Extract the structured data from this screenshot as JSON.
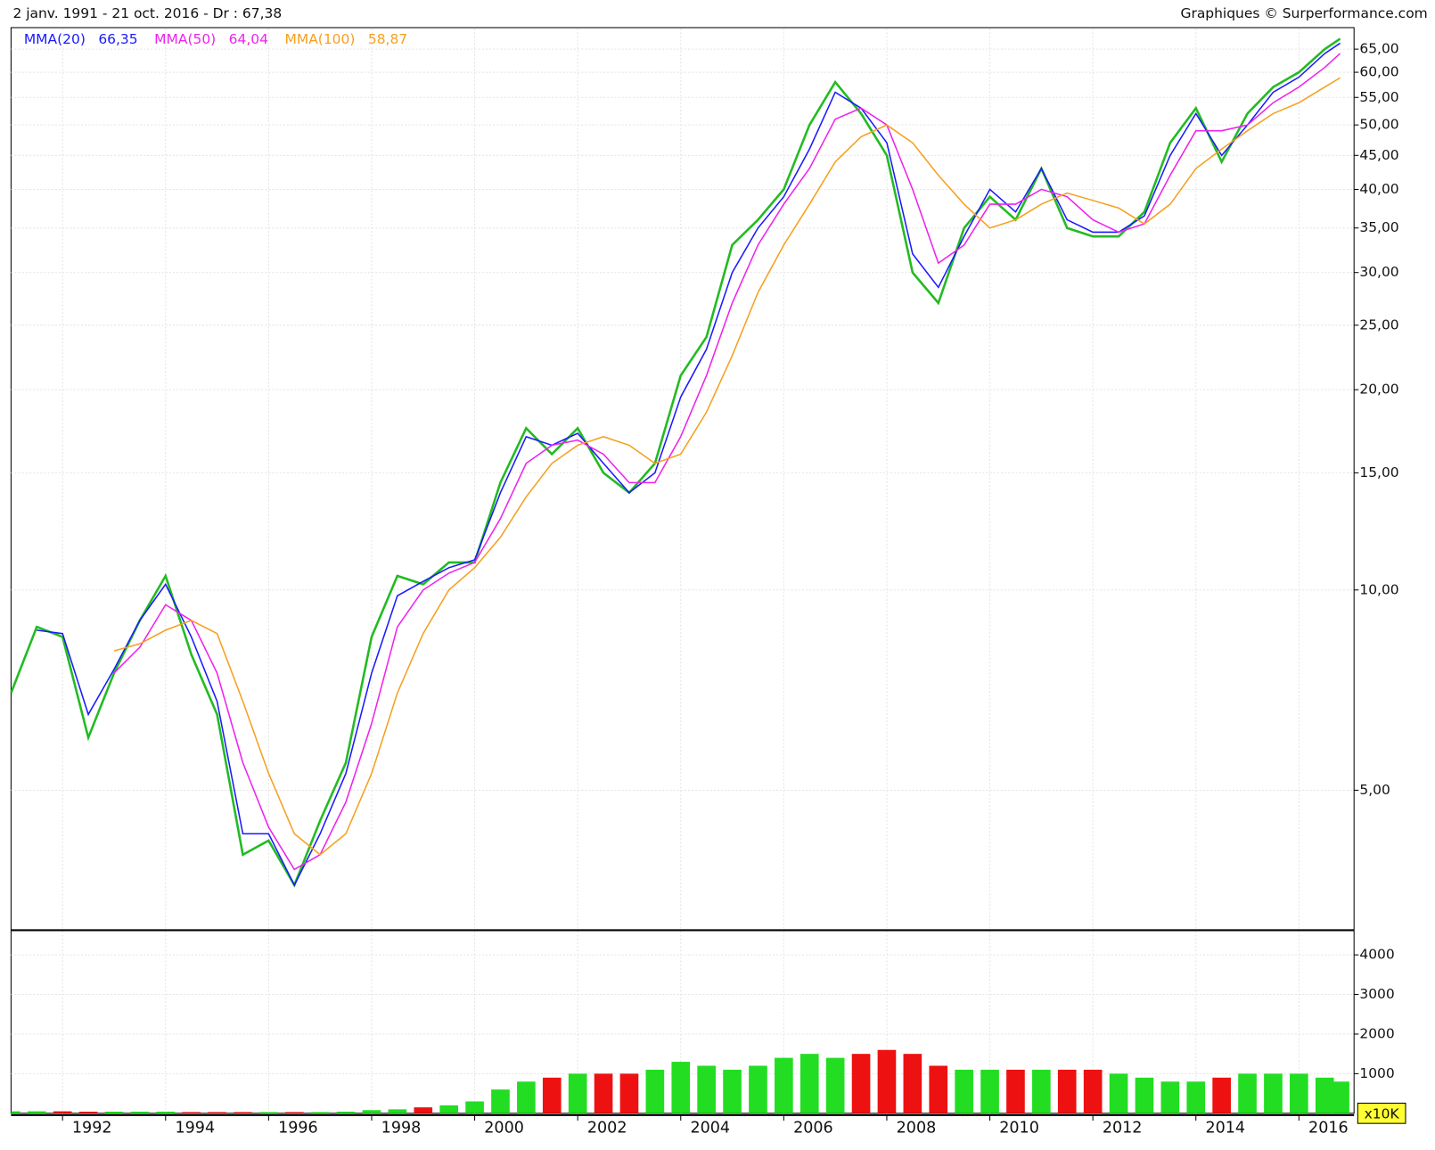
{
  "header": {
    "left": "2 janv. 1991 - 21 oct. 2016 - Dr : 67,38",
    "right": "Graphiques © Surperformance.com"
  },
  "chart_data": [
    {
      "type": "line",
      "log_scale": true,
      "grid": true,
      "x": [
        1991.0,
        1991.5,
        1992.0,
        1992.5,
        1993.0,
        1993.5,
        1994.0,
        1994.5,
        1995.0,
        1995.5,
        1996.0,
        1996.5,
        1997.0,
        1997.5,
        1998.0,
        1998.5,
        1999.0,
        1999.5,
        2000.0,
        2000.5,
        2001.0,
        2001.5,
        2002.0,
        2002.5,
        2003.0,
        2003.5,
        2004.0,
        2004.5,
        2005.0,
        2005.5,
        2006.0,
        2006.5,
        2007.0,
        2007.5,
        2008.0,
        2008.5,
        2009.0,
        2009.5,
        2010.0,
        2010.5,
        2011.0,
        2011.5,
        2012.0,
        2012.5,
        2013.0,
        2013.5,
        2014.0,
        2014.5,
        2015.0,
        2015.5,
        2016.0,
        2016.5,
        2016.8
      ],
      "series": [
        {
          "color": "#22bb22",
          "values": [
            7.0,
            8.8,
            8.5,
            6.0,
            7.5,
            9.0,
            10.5,
            8.0,
            6.5,
            4.0,
            4.2,
            3.6,
            4.5,
            5.5,
            8.5,
            10.5,
            10.2,
            11.0,
            11.0,
            14.5,
            17.5,
            16.0,
            17.5,
            15.0,
            14.0,
            15.5,
            21,
            24,
            33,
            36,
            40,
            50,
            58,
            52,
            45,
            30,
            27,
            35,
            39,
            36,
            43,
            35,
            34,
            34,
            37,
            47,
            53,
            44,
            52,
            57,
            60,
            65,
            67.38
          ]
        },
        {
          "name": "MMA(20)",
          "last_label": "66,35",
          "color": "#1a1aff",
          "values": [
            null,
            8.7,
            8.6,
            6.5,
            7.6,
            9.0,
            10.2,
            8.5,
            6.8,
            4.3,
            4.3,
            3.6,
            4.3,
            5.3,
            7.5,
            9.8,
            10.3,
            10.8,
            11.1,
            14.0,
            17.0,
            16.5,
            17.2,
            15.5,
            14.0,
            15.0,
            19.5,
            23.0,
            30.0,
            35.0,
            39.0,
            46.0,
            56.0,
            53.0,
            47.0,
            32.0,
            28.5,
            34.0,
            40.0,
            37.0,
            43.0,
            36.0,
            34.5,
            34.5,
            36.5,
            45.0,
            52.0,
            45.0,
            50.0,
            56.0,
            59.0,
            64.0,
            66.35
          ]
        },
        {
          "name": "MMA(50)",
          "last_label": "64,04",
          "color": "#ee22ee",
          "values": [
            null,
            null,
            null,
            null,
            7.5,
            8.2,
            9.5,
            9.0,
            7.5,
            5.5,
            4.4,
            3.8,
            4.0,
            4.8,
            6.3,
            8.8,
            10.0,
            10.6,
            11.0,
            12.8,
            15.5,
            16.5,
            16.8,
            16.0,
            14.5,
            14.5,
            17.0,
            21.0,
            27.0,
            33.0,
            38.0,
            43.0,
            51.0,
            53.0,
            50.0,
            40.0,
            31.0,
            33.0,
            38.0,
            38.0,
            40.0,
            39.0,
            36.0,
            34.5,
            35.5,
            42.0,
            49.0,
            49.0,
            50.0,
            54.0,
            57.0,
            61.0,
            64.04
          ]
        },
        {
          "name": "MMA(100)",
          "last_label": "58,87",
          "color": "#f5a020",
          "values": [
            null,
            null,
            null,
            null,
            8.1,
            8.3,
            8.7,
            9.0,
            8.6,
            6.8,
            5.3,
            4.3,
            4.0,
            4.3,
            5.3,
            7.0,
            8.6,
            10.0,
            10.8,
            12.0,
            13.8,
            15.5,
            16.5,
            17.0,
            16.5,
            15.5,
            16.0,
            18.5,
            22.5,
            28.0,
            33.0,
            38.0,
            44.0,
            48.0,
            50.0,
            47.0,
            42.0,
            38.0,
            35.0,
            36.0,
            38.0,
            39.5,
            38.5,
            37.5,
            35.5,
            38.0,
            43.0,
            46.0,
            49.0,
            52.0,
            54.0,
            57.0,
            58.87
          ]
        }
      ],
      "xlim": [
        1991,
        2017.07
      ],
      "xticks": [
        1992,
        1994,
        1996,
        1998,
        2000,
        2002,
        2004,
        2006,
        2008,
        2010,
        2012,
        2014,
        2016
      ],
      "ylim": [
        3.09,
        69.8
      ],
      "yticks": [
        {
          "value": 5,
          "label": "5,00"
        },
        {
          "value": 10,
          "label": "10,00"
        },
        {
          "value": 15,
          "label": "15,00"
        },
        {
          "value": 20,
          "label": "20,00"
        },
        {
          "value": 25,
          "label": "25,00"
        },
        {
          "value": 30,
          "label": "30,00"
        },
        {
          "value": 35,
          "label": "35,00"
        },
        {
          "value": 40,
          "label": "40,00"
        },
        {
          "value": 45,
          "label": "45,00"
        },
        {
          "value": 50,
          "label": "50,00"
        },
        {
          "value": 55,
          "label": "55,00"
        },
        {
          "value": 60,
          "label": "60,00"
        },
        {
          "value": 65,
          "label": "65,00"
        }
      ]
    },
    {
      "type": "bar",
      "grid": true,
      "unit_label": "x10K",
      "up_color": "#22dd22",
      "down_color": "#ee1111",
      "values": [
        50,
        50,
        50,
        40,
        40,
        40,
        40,
        30,
        30,
        30,
        30,
        30,
        30,
        40,
        80,
        100,
        150,
        200,
        300,
        600,
        800,
        900,
        1000,
        1000,
        1000,
        1100,
        1300,
        1200,
        1100,
        1200,
        1400,
        1500,
        1400,
        1500,
        1600,
        1500,
        1200,
        1100,
        1100,
        1100,
        1100,
        1100,
        1100,
        1000,
        900,
        800,
        800,
        900,
        1000,
        1000,
        1000,
        900,
        800
      ],
      "ylim": [
        0,
        4600
      ],
      "yticks": [
        1000,
        2000,
        3000,
        4000
      ]
    }
  ]
}
